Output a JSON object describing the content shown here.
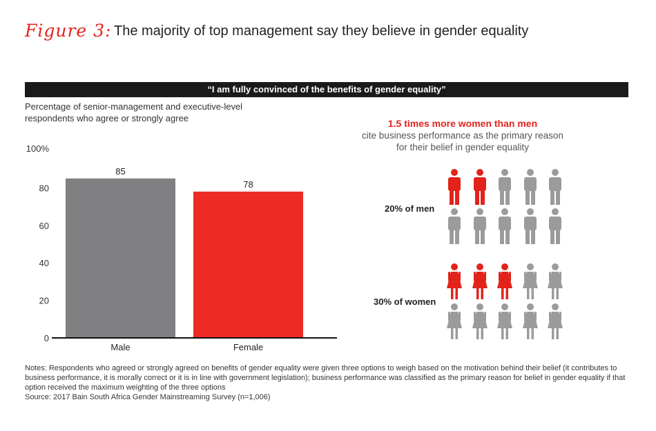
{
  "header": {
    "figure_label": "Figure 3:",
    "title": "The majority of top management say they believe in gender equality"
  },
  "banner": "“I am fully convinced of the benefits of gender equality”",
  "subtitle": "Percentage of senior-management and executive-level respondents who agree or strongly agree",
  "chart_data": {
    "type": "bar",
    "title": "“I am fully convinced of the benefits of gender equality”",
    "ylabel": "Percentage of senior-management and executive-level respondents who agree or strongly agree",
    "categories": [
      "Male",
      "Female"
    ],
    "values": [
      85,
      78
    ],
    "value_labels": [
      "85",
      "78"
    ],
    "colors": [
      "#808083",
      "#ec2b24"
    ],
    "ylim": [
      0,
      100
    ],
    "yticks": [
      0,
      20,
      40,
      60,
      80
    ],
    "ytick_labels": [
      "0",
      "20",
      "40",
      "60",
      "80"
    ],
    "ytop_label": "100%",
    "grid": false
  },
  "callout": {
    "highlight": "1.5 times more women than men",
    "text": "cite business performance as the primary reason for their belief in gender equality"
  },
  "pictograms": [
    {
      "label": "20% of men",
      "gender": "male",
      "total": 10,
      "highlighted": 2
    },
    {
      "label": "30% of women",
      "gender": "female",
      "total": 10,
      "highlighted": 3
    }
  ],
  "colors": {
    "accent": "#e2231a",
    "gray": "#9b9b9d",
    "bar_gray": "#808083",
    "bar_red": "#ec2b24"
  },
  "notes": {
    "text": "Notes: Respondents who agreed or strongly agreed on benefits of gender equality were given three options to weigh based on the motivation behind their belief (it contributes to business performance, it is morally correct or it is in line with government legislation); business performance was classified as the primary reason for belief in gender equality if that option received the maximum weighting of the three options",
    "source": "Source: 2017 Bain South Africa Gender Mainstreaming Survey (n=1,006)"
  }
}
